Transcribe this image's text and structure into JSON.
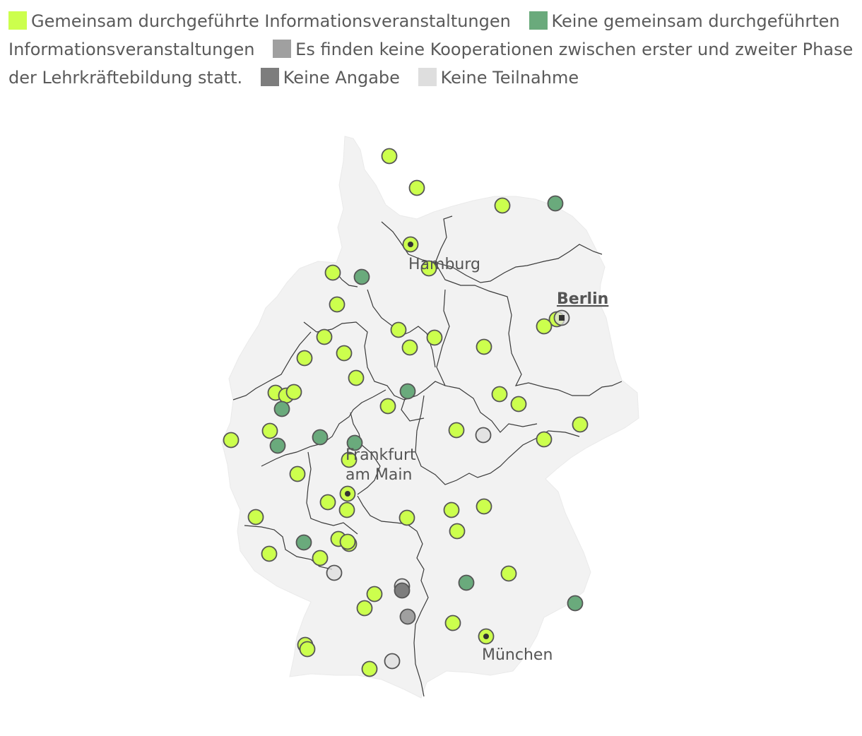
{
  "legend": [
    {
      "key": "joint",
      "label": "Gemeinsam durchgeführte Informationsveranstaltungen",
      "color": "#ccff4d"
    },
    {
      "key": "no_joint",
      "label": "Keine gemeinsam durchgeführten Informationsveranstaltungen",
      "color": "#6aaa7c"
    },
    {
      "key": "no_coop",
      "label": "Es finden keine Kooperationen zwischen erster und zweiter Phase der Lehrkräftebildung statt.",
      "color": "#a0a0a0"
    },
    {
      "key": "no_answer",
      "label": "Keine Angabe",
      "color": "#7d7d7d"
    },
    {
      "key": "no_participation",
      "label": "Keine Teilnahme",
      "color": "#dedede"
    }
  ],
  "map": {
    "land_color": "#f2f2f2",
    "border_color": "#3a3a3a",
    "cities": [
      {
        "name": "Hamburg",
        "capital": false
      },
      {
        "name": "Berlin",
        "capital": true
      },
      {
        "name": "Frankfurt am Main",
        "capital": false,
        "lines": [
          "Frankfurt",
          "am Main"
        ]
      },
      {
        "name": "München",
        "capital": false
      }
    ]
  }
}
